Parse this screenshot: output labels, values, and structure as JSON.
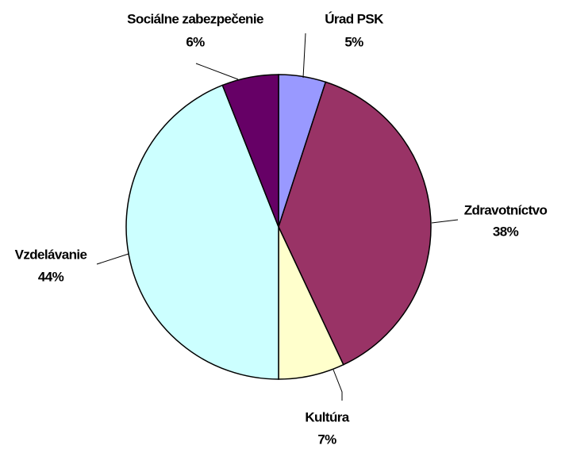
{
  "chart_data": {
    "type": "pie",
    "categories": [
      "Úrad PSK",
      "Zdravotníctvo",
      "Kultúra",
      "Vzdelávanie",
      "Sociálne zabezpečenie"
    ],
    "values": [
      5,
      38,
      7,
      44,
      6
    ],
    "value_labels": [
      "5%",
      "38%",
      "7%",
      "44%",
      "6%"
    ],
    "colors": [
      "#9999ff",
      "#993366",
      "#ffffcc",
      "#ccffff",
      "#660066"
    ]
  }
}
